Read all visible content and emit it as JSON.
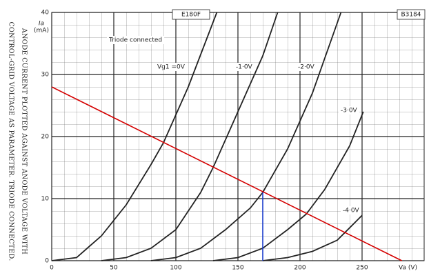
{
  "chart_data": {
    "type": "line",
    "title": "E180F",
    "code": "B3184",
    "subtitle": "Triode connected",
    "caption": [
      "ANODE CURRENT PLOTTED AGAINST ANODE VOLTAGE WITH",
      "CONTROL-GRID VOLTAGE AS PARAMETER.  TRIODE CONNECTED."
    ],
    "y_label": "Ia",
    "y_unit": "(mA)",
    "x_label": "Va (V)",
    "xlim": [
      0,
      300
    ],
    "ylim": [
      0,
      40
    ],
    "xticks": [
      0,
      50,
      100,
      150,
      200,
      250
    ],
    "yticks": [
      0,
      10,
      20,
      30,
      40
    ],
    "grid": true,
    "series": [
      {
        "name": "Vg1 =0V",
        "color": "#222222",
        "x": [
          0,
          20,
          40,
          60,
          80,
          90,
          110,
          133
        ],
        "values": [
          0,
          0.5,
          4,
          9,
          15.5,
          19,
          28,
          40
        ]
      },
      {
        "name": "-1·0V",
        "color": "#222222",
        "x": [
          40,
          60,
          80,
          100,
          120,
          130,
          150,
          170,
          182
        ],
        "values": [
          0,
          0.5,
          2,
          5,
          11,
          15,
          24,
          33,
          40
        ]
      },
      {
        "name": "-2·0V",
        "color": "#222222",
        "x": [
          80,
          100,
          120,
          140,
          160,
          170,
          190,
          210,
          233
        ],
        "values": [
          0,
          0.5,
          2,
          5,
          8.5,
          11,
          18,
          27,
          40
        ]
      },
      {
        "name": "-3·0V",
        "color": "#222222",
        "x": [
          130,
          150,
          170,
          190,
          205,
          220,
          240,
          251
        ],
        "values": [
          0,
          0.5,
          2,
          5,
          7.5,
          11.5,
          18.5,
          24
        ]
      },
      {
        "name": "-4·0V",
        "color": "#222222",
        "x": [
          170,
          190,
          210,
          230,
          250
        ],
        "values": [
          0,
          0.5,
          1.5,
          3.3,
          7.3
        ]
      }
    ],
    "load_line": {
      "color": "#d40000",
      "x": [
        0,
        282
      ],
      "values": [
        28,
        0
      ]
    },
    "marker_line": {
      "color": "#1a3ccc",
      "x": [
        170,
        170
      ],
      "values": [
        11,
        0
      ]
    }
  }
}
